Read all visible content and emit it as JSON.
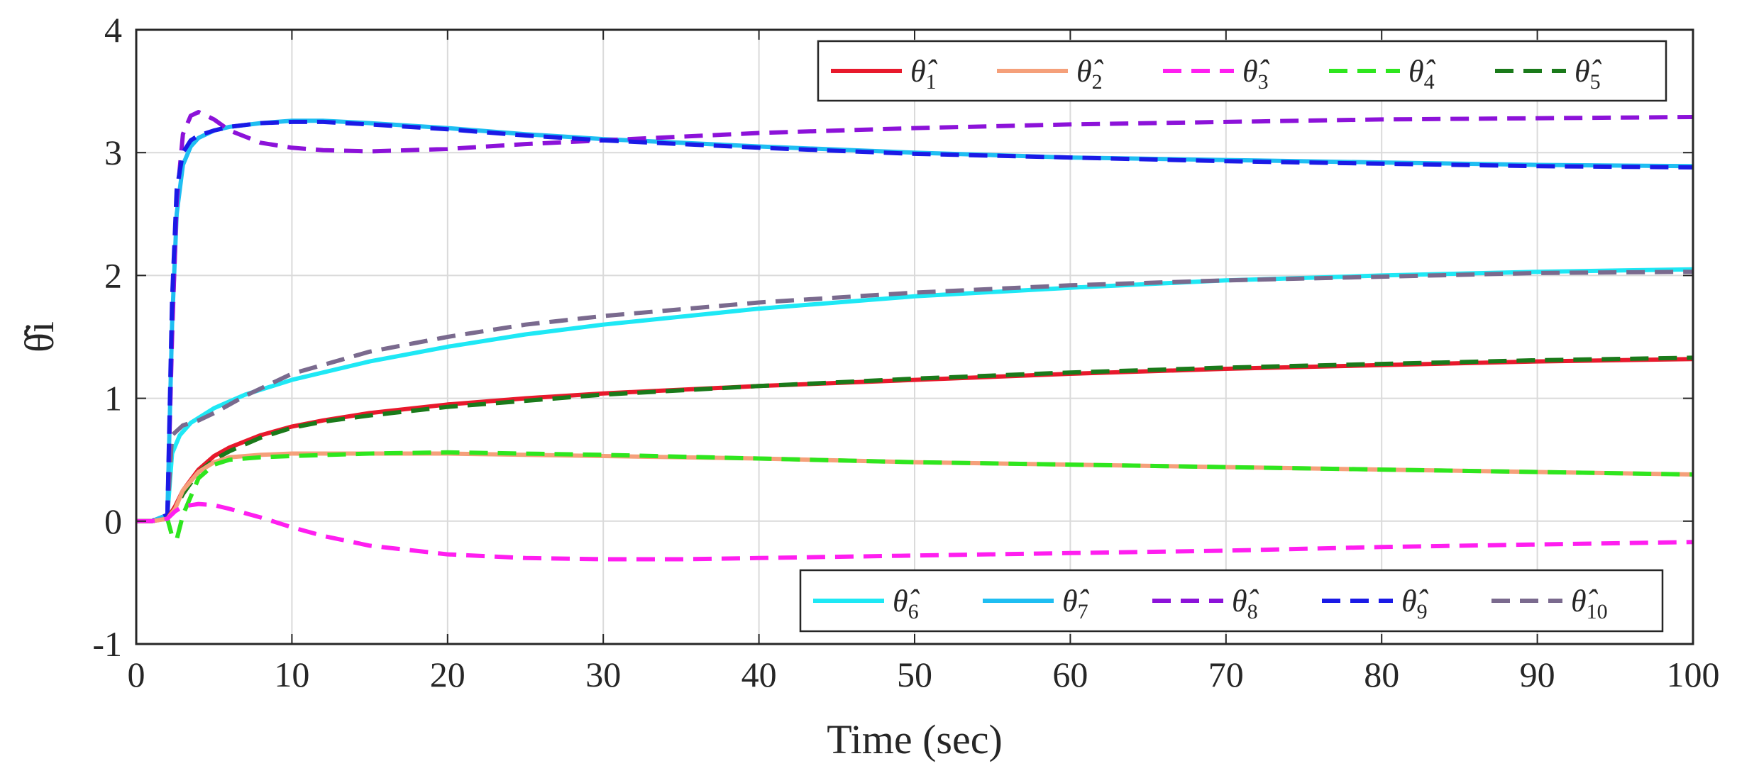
{
  "chart_data": {
    "type": "line",
    "title": "",
    "xlabel": "Time (sec)",
    "ylabel": "θ̂i",
    "xlim": [
      0,
      100
    ],
    "ylim": [
      -1,
      4
    ],
    "grid": true,
    "xticks": [
      "0",
      "10",
      "20",
      "30",
      "40",
      "50",
      "60",
      "70",
      "80",
      "90",
      "100"
    ],
    "yticks": [
      "-1",
      "0",
      "1",
      "2",
      "3",
      "4"
    ],
    "legend_top": {
      "placement": "top-right",
      "entries": [
        1,
        2,
        3,
        4,
        5
      ]
    },
    "legend_bottom": {
      "placement": "bottom-right",
      "entries": [
        6,
        7,
        8,
        9,
        10
      ]
    },
    "series": [
      {
        "id": 1,
        "name": "θ̂1",
        "color": "#e8192c",
        "dashed": false,
        "points": [
          [
            0,
            0
          ],
          [
            1,
            0
          ],
          [
            2,
            0.02
          ],
          [
            2.5,
            0.12
          ],
          [
            3,
            0.25
          ],
          [
            4,
            0.42
          ],
          [
            5,
            0.53
          ],
          [
            6,
            0.6
          ],
          [
            8,
            0.7
          ],
          [
            10,
            0.77
          ],
          [
            12,
            0.82
          ],
          [
            15,
            0.88
          ],
          [
            20,
            0.95
          ],
          [
            25,
            1.0
          ],
          [
            30,
            1.04
          ],
          [
            40,
            1.1
          ],
          [
            50,
            1.15
          ],
          [
            60,
            1.2
          ],
          [
            70,
            1.24
          ],
          [
            80,
            1.27
          ],
          [
            90,
            1.3
          ],
          [
            100,
            1.32
          ]
        ]
      },
      {
        "id": 2,
        "name": "θ̂2",
        "color": "#f5a07a",
        "dashed": false,
        "points": [
          [
            0,
            0
          ],
          [
            1,
            0
          ],
          [
            2,
            0.02
          ],
          [
            2.5,
            0.1
          ],
          [
            3,
            0.25
          ],
          [
            4,
            0.4
          ],
          [
            5,
            0.48
          ],
          [
            6,
            0.52
          ],
          [
            8,
            0.54
          ],
          [
            10,
            0.55
          ],
          [
            15,
            0.55
          ],
          [
            20,
            0.55
          ],
          [
            30,
            0.53
          ],
          [
            40,
            0.51
          ],
          [
            50,
            0.48
          ],
          [
            60,
            0.46
          ],
          [
            70,
            0.44
          ],
          [
            80,
            0.42
          ],
          [
            90,
            0.4
          ],
          [
            100,
            0.38
          ]
        ]
      },
      {
        "id": 3,
        "name": "θ̂3",
        "color": "#ff1ef0",
        "dashed": true,
        "points": [
          [
            0,
            0
          ],
          [
            1,
            0
          ],
          [
            2,
            0.02
          ],
          [
            2.5,
            0.08
          ],
          [
            3,
            0.12
          ],
          [
            4,
            0.14
          ],
          [
            5,
            0.13
          ],
          [
            6,
            0.1
          ],
          [
            8,
            0.03
          ],
          [
            10,
            -0.05
          ],
          [
            12,
            -0.12
          ],
          [
            15,
            -0.2
          ],
          [
            20,
            -0.27
          ],
          [
            25,
            -0.3
          ],
          [
            30,
            -0.31
          ],
          [
            35,
            -0.31
          ],
          [
            40,
            -0.3
          ],
          [
            50,
            -0.28
          ],
          [
            60,
            -0.26
          ],
          [
            70,
            -0.24
          ],
          [
            80,
            -0.21
          ],
          [
            90,
            -0.19
          ],
          [
            100,
            -0.17
          ]
        ]
      },
      {
        "id": 4,
        "name": "θ̂4",
        "color": "#2ee61e",
        "dashed": true,
        "points": [
          [
            0,
            0
          ],
          [
            1,
            0
          ],
          [
            2,
            0.02
          ],
          [
            2.3,
            -0.12
          ],
          [
            2.6,
            -0.15
          ],
          [
            3,
            0.05
          ],
          [
            4,
            0.35
          ],
          [
            5,
            0.46
          ],
          [
            6,
            0.5
          ],
          [
            8,
            0.52
          ],
          [
            10,
            0.53
          ],
          [
            15,
            0.55
          ],
          [
            20,
            0.56
          ],
          [
            30,
            0.54
          ],
          [
            40,
            0.51
          ],
          [
            50,
            0.48
          ],
          [
            60,
            0.46
          ],
          [
            70,
            0.44
          ],
          [
            80,
            0.42
          ],
          [
            90,
            0.4
          ],
          [
            100,
            0.38
          ]
        ]
      },
      {
        "id": 5,
        "name": "θ̂5",
        "color": "#1a7a1a",
        "dashed": true,
        "points": [
          [
            0,
            0
          ],
          [
            1,
            0
          ],
          [
            2,
            0.02
          ],
          [
            2.5,
            0.1
          ],
          [
            3,
            0.22
          ],
          [
            4,
            0.4
          ],
          [
            5,
            0.5
          ],
          [
            6,
            0.57
          ],
          [
            8,
            0.68
          ],
          [
            10,
            0.76
          ],
          [
            12,
            0.81
          ],
          [
            15,
            0.86
          ],
          [
            20,
            0.93
          ],
          [
            25,
            0.98
          ],
          [
            30,
            1.03
          ],
          [
            40,
            1.1
          ],
          [
            50,
            1.16
          ],
          [
            60,
            1.21
          ],
          [
            70,
            1.25
          ],
          [
            80,
            1.28
          ],
          [
            90,
            1.31
          ],
          [
            100,
            1.33
          ]
        ]
      },
      {
        "id": 6,
        "name": "θ̂6",
        "color": "#1ee8f5",
        "dashed": false,
        "points": [
          [
            0,
            0
          ],
          [
            1,
            0
          ],
          [
            2,
            0.05
          ],
          [
            2.3,
            0.55
          ],
          [
            2.8,
            0.7
          ],
          [
            3.5,
            0.8
          ],
          [
            5,
            0.92
          ],
          [
            7,
            1.03
          ],
          [
            10,
            1.15
          ],
          [
            15,
            1.3
          ],
          [
            20,
            1.42
          ],
          [
            25,
            1.52
          ],
          [
            30,
            1.6
          ],
          [
            40,
            1.73
          ],
          [
            50,
            1.83
          ],
          [
            60,
            1.9
          ],
          [
            70,
            1.96
          ],
          [
            80,
            2.0
          ],
          [
            90,
            2.03
          ],
          [
            100,
            2.05
          ]
        ]
      },
      {
        "id": 7,
        "name": "θ̂7",
        "color": "#1fbef2",
        "dashed": false,
        "points": [
          [
            0,
            0
          ],
          [
            1,
            0
          ],
          [
            2,
            0.05
          ],
          [
            2.3,
            1.6
          ],
          [
            2.6,
            2.5
          ],
          [
            3,
            2.9
          ],
          [
            3.5,
            3.05
          ],
          [
            4,
            3.12
          ],
          [
            5,
            3.18
          ],
          [
            6,
            3.21
          ],
          [
            8,
            3.24
          ],
          [
            10,
            3.26
          ],
          [
            12,
            3.26
          ],
          [
            15,
            3.24
          ],
          [
            20,
            3.2
          ],
          [
            25,
            3.15
          ],
          [
            30,
            3.11
          ],
          [
            40,
            3.05
          ],
          [
            50,
            3.0
          ],
          [
            60,
            2.96
          ],
          [
            70,
            2.94
          ],
          [
            80,
            2.92
          ],
          [
            90,
            2.9
          ],
          [
            100,
            2.89
          ]
        ]
      },
      {
        "id": 8,
        "name": "θ̂8",
        "color": "#8c12d9",
        "dashed": true,
        "points": [
          [
            0,
            0
          ],
          [
            1,
            0
          ],
          [
            2,
            0.05
          ],
          [
            2.3,
            1.5
          ],
          [
            2.6,
            2.6
          ],
          [
            3,
            3.15
          ],
          [
            3.5,
            3.3
          ],
          [
            4,
            3.33
          ],
          [
            5,
            3.27
          ],
          [
            6,
            3.18
          ],
          [
            8,
            3.08
          ],
          [
            10,
            3.04
          ],
          [
            12,
            3.02
          ],
          [
            15,
            3.01
          ],
          [
            20,
            3.03
          ],
          [
            25,
            3.07
          ],
          [
            30,
            3.1
          ],
          [
            40,
            3.16
          ],
          [
            50,
            3.2
          ],
          [
            60,
            3.23
          ],
          [
            70,
            3.25
          ],
          [
            80,
            3.27
          ],
          [
            90,
            3.28
          ],
          [
            100,
            3.29
          ]
        ]
      },
      {
        "id": 9,
        "name": "θ̂9",
        "color": "#1a1ae6",
        "dashed": true,
        "points": [
          [
            0,
            0
          ],
          [
            1,
            0
          ],
          [
            2,
            0.05
          ],
          [
            2.3,
            1.8
          ],
          [
            2.6,
            2.7
          ],
          [
            3,
            3.0
          ],
          [
            3.5,
            3.1
          ],
          [
            4,
            3.14
          ],
          [
            5,
            3.18
          ],
          [
            6,
            3.21
          ],
          [
            8,
            3.24
          ],
          [
            10,
            3.25
          ],
          [
            12,
            3.25
          ],
          [
            15,
            3.23
          ],
          [
            20,
            3.19
          ],
          [
            25,
            3.14
          ],
          [
            30,
            3.1
          ],
          [
            40,
            3.04
          ],
          [
            50,
            2.99
          ],
          [
            60,
            2.96
          ],
          [
            70,
            2.93
          ],
          [
            80,
            2.91
          ],
          [
            90,
            2.89
          ],
          [
            100,
            2.88
          ]
        ]
      },
      {
        "id": 10,
        "name": "θ̂10",
        "color": "#7a6a8e",
        "dashed": true,
        "points": [
          [
            0,
            0
          ],
          [
            1,
            0
          ],
          [
            2,
            0.05
          ],
          [
            2.3,
            0.7
          ],
          [
            3,
            0.78
          ],
          [
            4,
            0.82
          ],
          [
            5,
            0.88
          ],
          [
            7,
            1.02
          ],
          [
            10,
            1.2
          ],
          [
            15,
            1.38
          ],
          [
            20,
            1.5
          ],
          [
            25,
            1.6
          ],
          [
            30,
            1.67
          ],
          [
            40,
            1.78
          ],
          [
            50,
            1.86
          ],
          [
            60,
            1.92
          ],
          [
            70,
            1.96
          ],
          [
            80,
            1.99
          ],
          [
            90,
            2.02
          ],
          [
            100,
            2.03
          ]
        ]
      }
    ]
  }
}
